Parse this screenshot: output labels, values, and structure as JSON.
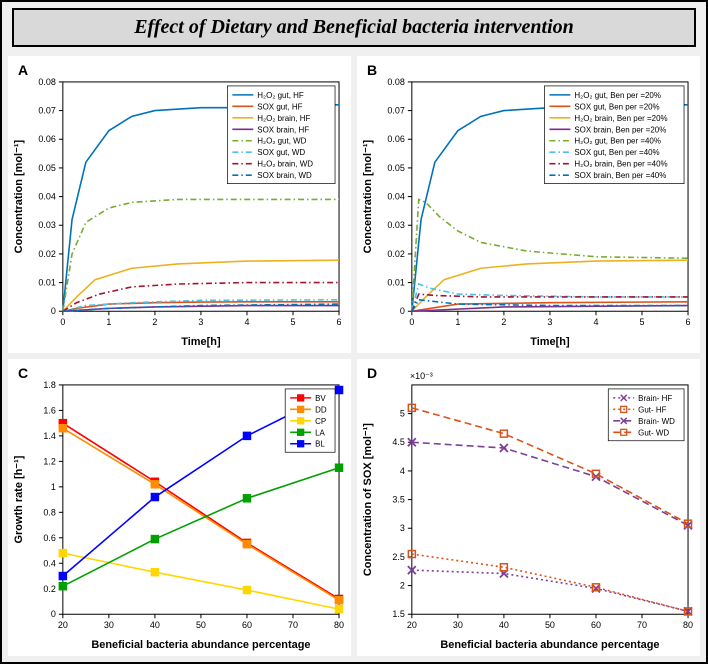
{
  "title": "Effect of Dietary and Beneficial bacteria intervention",
  "panelA": {
    "label": "A",
    "type": "line",
    "xlabel": "Time[h]",
    "ylabel": "Concentration [mol⁻¹]",
    "xlim": [
      0,
      6
    ],
    "xtick_step": 1,
    "ylim": [
      0,
      0.08
    ],
    "ytick_step": 0.01,
    "legend_pos": "top-right",
    "series": [
      {
        "name": "H₂O₂ gut, HF",
        "color": "#0072bd",
        "style": "solid",
        "data": [
          [
            0,
            0
          ],
          [
            0.2,
            0.032
          ],
          [
            0.5,
            0.052
          ],
          [
            1,
            0.063
          ],
          [
            1.5,
            0.068
          ],
          [
            2,
            0.07
          ],
          [
            3,
            0.071
          ],
          [
            4,
            0.071
          ],
          [
            5,
            0.072
          ],
          [
            6,
            0.072
          ]
        ]
      },
      {
        "name": "SOX gut, HF",
        "color": "#d95319",
        "style": "solid",
        "data": [
          [
            0,
            0
          ],
          [
            0.3,
            0.001
          ],
          [
            1,
            0.0025
          ],
          [
            2,
            0.003
          ],
          [
            3,
            0.0032
          ],
          [
            4,
            0.0033
          ],
          [
            5,
            0.0033
          ],
          [
            6,
            0.0033
          ]
        ]
      },
      {
        "name": "H₂O₂ brain, HF",
        "color": "#edb120",
        "style": "solid",
        "data": [
          [
            0,
            0
          ],
          [
            0.3,
            0.005
          ],
          [
            0.7,
            0.011
          ],
          [
            1.5,
            0.015
          ],
          [
            2.5,
            0.0165
          ],
          [
            4,
            0.0175
          ],
          [
            6,
            0.0178
          ]
        ]
      },
      {
        "name": "SOX brain, HF",
        "color": "#7e2f8e",
        "style": "solid",
        "data": [
          [
            0,
            0
          ],
          [
            1,
            0.001
          ],
          [
            2,
            0.0015
          ],
          [
            4,
            0.002
          ],
          [
            6,
            0.002
          ]
        ]
      },
      {
        "name": "H₂O₂ gut, WD",
        "color": "#77ac30",
        "style": "dashdot",
        "data": [
          [
            0,
            0
          ],
          [
            0.2,
            0.02
          ],
          [
            0.5,
            0.031
          ],
          [
            1,
            0.036
          ],
          [
            1.5,
            0.038
          ],
          [
            2.5,
            0.039
          ],
          [
            4,
            0.039
          ],
          [
            6,
            0.039
          ]
        ]
      },
      {
        "name": "SOX gut, WD",
        "color": "#4dbeee",
        "style": "dashdot",
        "data": [
          [
            0,
            0
          ],
          [
            0.5,
            0.002
          ],
          [
            1.5,
            0.003
          ],
          [
            3,
            0.0038
          ],
          [
            6,
            0.004
          ]
        ]
      },
      {
        "name": "H₂O₂ brain, WD",
        "color": "#a2142f",
        "style": "dashdot",
        "data": [
          [
            0,
            0
          ],
          [
            0.3,
            0.003
          ],
          [
            0.8,
            0.006
          ],
          [
            1.5,
            0.0085
          ],
          [
            2.5,
            0.0095
          ],
          [
            4,
            0.01
          ],
          [
            6,
            0.01
          ]
        ]
      },
      {
        "name": "SOX brain, WD",
        "color": "#0072bd",
        "style": "dashdot",
        "data": [
          [
            0,
            0
          ],
          [
            1,
            0.001
          ],
          [
            3,
            0.002
          ],
          [
            6,
            0.0025
          ]
        ]
      }
    ]
  },
  "panelB": {
    "label": "B",
    "type": "line",
    "xlabel": "Time[h]",
    "ylabel": "Concentration [mol⁻¹]",
    "xlim": [
      0,
      6
    ],
    "xtick_step": 1,
    "ylim": [
      0,
      0.08
    ],
    "ytick_step": 0.01,
    "legend_pos": "top-right",
    "series": [
      {
        "name": "H₂O₂ gut, Ben per =20%",
        "color": "#0072bd",
        "style": "solid",
        "data": [
          [
            0,
            0
          ],
          [
            0.2,
            0.032
          ],
          [
            0.5,
            0.052
          ],
          [
            1,
            0.063
          ],
          [
            1.5,
            0.068
          ],
          [
            2,
            0.07
          ],
          [
            3,
            0.071
          ],
          [
            4,
            0.071
          ],
          [
            5,
            0.072
          ],
          [
            6,
            0.072
          ]
        ]
      },
      {
        "name": "SOX gut, Ben per =20%",
        "color": "#d95319",
        "style": "solid",
        "data": [
          [
            0,
            0
          ],
          [
            1,
            0.0025
          ],
          [
            3,
            0.003
          ],
          [
            6,
            0.0033
          ]
        ]
      },
      {
        "name": "H₂O₂ brain, Ben per =20%",
        "color": "#edb120",
        "style": "solid",
        "data": [
          [
            0,
            0
          ],
          [
            0.3,
            0.005
          ],
          [
            0.7,
            0.011
          ],
          [
            1.5,
            0.015
          ],
          [
            2.5,
            0.0165
          ],
          [
            4,
            0.0175
          ],
          [
            6,
            0.0178
          ]
        ]
      },
      {
        "name": "SOX brain, Ben per =20%",
        "color": "#7e2f8e",
        "style": "solid",
        "data": [
          [
            0,
            0
          ],
          [
            2,
            0.0015
          ],
          [
            6,
            0.002
          ]
        ]
      },
      {
        "name": "H₂O₂ gut, Ben per =40%",
        "color": "#77ac30",
        "style": "dashdot",
        "data": [
          [
            0,
            0
          ],
          [
            0.15,
            0.039
          ],
          [
            0.3,
            0.038
          ],
          [
            0.6,
            0.033
          ],
          [
            1,
            0.028
          ],
          [
            1.5,
            0.024
          ],
          [
            2.5,
            0.021
          ],
          [
            4,
            0.019
          ],
          [
            6,
            0.0185
          ]
        ]
      },
      {
        "name": "SOX gut, Ben per =40%",
        "color": "#4dbeee",
        "style": "dashdot",
        "data": [
          [
            0,
            0
          ],
          [
            0.15,
            0.0095
          ],
          [
            0.4,
            0.008
          ],
          [
            1,
            0.006
          ],
          [
            2,
            0.0055
          ],
          [
            4,
            0.005
          ],
          [
            6,
            0.005
          ]
        ]
      },
      {
        "name": "H₂O₂ brain, Ben per =40%",
        "color": "#a2142f",
        "style": "dashdot",
        "data": [
          [
            0,
            0
          ],
          [
            0.15,
            0.006
          ],
          [
            0.5,
            0.0055
          ],
          [
            1.5,
            0.005
          ],
          [
            3,
            0.005
          ],
          [
            6,
            0.005
          ]
        ]
      },
      {
        "name": "SOX brain, Ben per =40%",
        "color": "#0072bd",
        "style": "dashdot",
        "data": [
          [
            0,
            0
          ],
          [
            0.15,
            0.004
          ],
          [
            1,
            0.0025
          ],
          [
            3,
            0.002
          ],
          [
            6,
            0.002
          ]
        ]
      }
    ]
  },
  "panelC": {
    "label": "C",
    "type": "line-marker",
    "xlabel": "Beneficial bacteria abundance percentage",
    "ylabel": "Growth rate [h⁻¹]",
    "xlim": [
      20,
      80
    ],
    "xticks": [
      20,
      30,
      40,
      50,
      60,
      70,
      80
    ],
    "ylim": [
      0,
      1.8
    ],
    "ytick_step": 0.2,
    "legend_pos": "top-right",
    "marker": "square",
    "series": [
      {
        "name": "BV",
        "color": "#ff0000",
        "data": [
          [
            20,
            1.5
          ],
          [
            40,
            1.04
          ],
          [
            60,
            0.56
          ],
          [
            80,
            0.12
          ]
        ]
      },
      {
        "name": "DD",
        "color": "#ff8c00",
        "data": [
          [
            20,
            1.46
          ],
          [
            40,
            1.02
          ],
          [
            60,
            0.55
          ],
          [
            80,
            0.11
          ]
        ]
      },
      {
        "name": "CP",
        "color": "#ffd700",
        "data": [
          [
            20,
            0.48
          ],
          [
            40,
            0.33
          ],
          [
            60,
            0.19
          ],
          [
            80,
            0.04
          ]
        ]
      },
      {
        "name": "LA",
        "color": "#00a000",
        "data": [
          [
            20,
            0.22
          ],
          [
            40,
            0.59
          ],
          [
            60,
            0.91
          ],
          [
            80,
            1.15
          ]
        ]
      },
      {
        "name": "BL",
        "color": "#0000ff",
        "data": [
          [
            20,
            0.3
          ],
          [
            40,
            0.92
          ],
          [
            60,
            1.4
          ],
          [
            80,
            1.76
          ]
        ]
      }
    ]
  },
  "panelD": {
    "label": "D",
    "type": "line-marker",
    "xlabel": "Beneficial bacteria abundance percentage",
    "ylabel": "Concentration of SOX [mol⁻¹]",
    "xlim": [
      20,
      80
    ],
    "xticks": [
      20,
      30,
      40,
      50,
      60,
      70,
      80
    ],
    "ylim": [
      1.5,
      5.5
    ],
    "yticks": [
      1.5,
      2,
      2.5,
      3,
      3.5,
      4,
      4.5,
      5
    ],
    "y_exponent": "×10⁻³",
    "legend_pos": "top-right",
    "series": [
      {
        "name": "Brain- HF",
        "color": "#7e3f98",
        "style": "dot",
        "marker": "x",
        "data": [
          [
            20,
            2.27
          ],
          [
            40,
            2.21
          ],
          [
            60,
            1.95
          ],
          [
            80,
            1.55
          ]
        ]
      },
      {
        "name": "Gut- HF",
        "color": "#d95319",
        "style": "dot",
        "marker": "square",
        "data": [
          [
            20,
            2.55
          ],
          [
            40,
            2.32
          ],
          [
            60,
            1.97
          ],
          [
            80,
            1.55
          ]
        ]
      },
      {
        "name": "Brain- WD",
        "color": "#7e3f98",
        "style": "dash",
        "marker": "x",
        "data": [
          [
            20,
            4.5
          ],
          [
            40,
            4.4
          ],
          [
            60,
            3.9
          ],
          [
            80,
            3.05
          ]
        ]
      },
      {
        "name": "Gut- WD",
        "color": "#d95319",
        "style": "dash",
        "marker": "square",
        "data": [
          [
            20,
            5.1
          ],
          [
            40,
            4.65
          ],
          [
            60,
            3.95
          ],
          [
            80,
            3.08
          ]
        ]
      }
    ]
  },
  "colors": {
    "background": "#f0f0f0",
    "panel_bg": "#ffffff",
    "axis": "#000000"
  }
}
